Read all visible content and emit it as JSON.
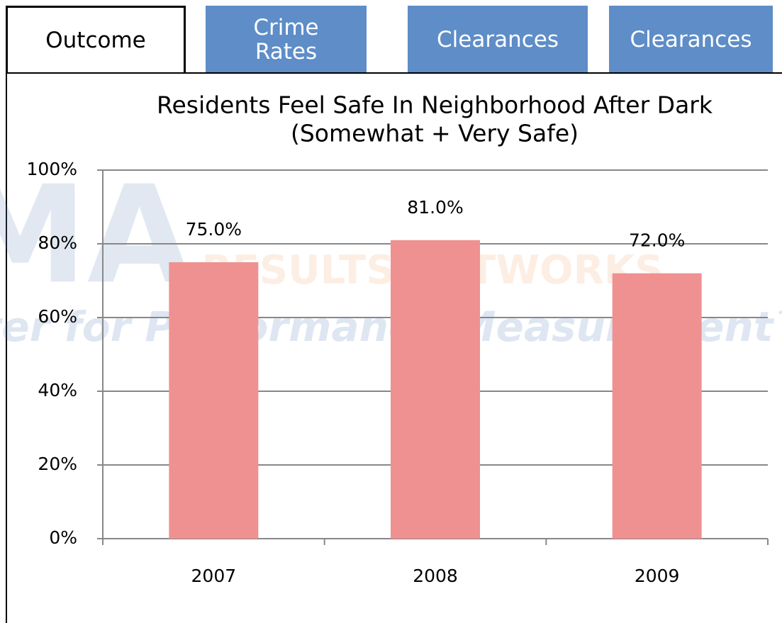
{
  "tabs": [
    "Outcome",
    "Crime Rates",
    "Clearances",
    "Clearances"
  ],
  "watermark": {
    "logo": "ICMA",
    "text": "RESULTS NETWORKS",
    "subtext": "Center for Performance Measurement™"
  },
  "chart_data": {
    "type": "bar",
    "title": "Residents Feel Safe In Neighborhood After Dark",
    "subtitle": "(Somewhat + Very Safe)",
    "categories": [
      "2007",
      "2008",
      "2009"
    ],
    "values": [
      75,
      81,
      72
    ],
    "value_labels": [
      "75.0%",
      "81.0%",
      "72.0%"
    ],
    "color": "#ef9190",
    "ylim": [
      0,
      100
    ],
    "yticks": [
      {
        "value": 0,
        "label": "0%"
      },
      {
        "value": 20,
        "label": "20%"
      },
      {
        "value": 40,
        "label": "40%"
      },
      {
        "value": 60,
        "label": "60%"
      },
      {
        "value": 80,
        "label": "80%"
      },
      {
        "value": 100,
        "label": "100%"
      }
    ],
    "grid": true
  }
}
